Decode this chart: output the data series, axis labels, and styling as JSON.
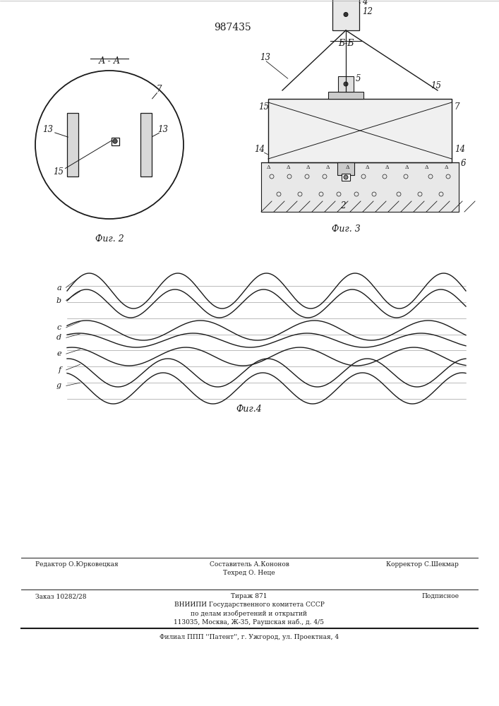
{
  "title_number": "987435",
  "line_color": "#1a1a1a",
  "fig2_caption": "Фиг. 2",
  "fig3_caption": "Фиг. 3",
  "fig4_caption": "Фиг.4",
  "section_label": "Б-Б",
  "fig2_label": "А - А"
}
